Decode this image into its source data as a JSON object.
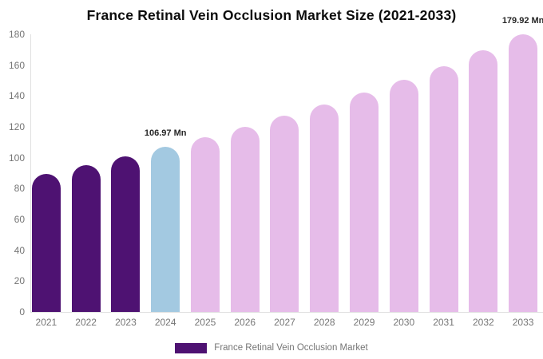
{
  "chart_data": {
    "type": "bar",
    "title": "France Retinal Vein Occlusion Market Size (2021-2033)",
    "categories": [
      "2021",
      "2022",
      "2023",
      "2024",
      "2025",
      "2026",
      "2027",
      "2028",
      "2029",
      "2030",
      "2031",
      "2032",
      "2033"
    ],
    "values": [
      89.5,
      95.2,
      100.9,
      106.97,
      113.2,
      120.0,
      127.0,
      134.5,
      142.0,
      150.5,
      159.5,
      169.5,
      179.92
    ],
    "bar_colors": [
      "#4e1272",
      "#4e1272",
      "#4e1272",
      "#a3c9e1",
      "#e6bce9",
      "#e6bce9",
      "#e6bce9",
      "#e6bce9",
      "#e6bce9",
      "#e6bce9",
      "#e6bce9",
      "#e6bce9",
      "#e6bce9"
    ],
    "xlabel": "",
    "ylabel": "",
    "ylim": [
      0,
      180
    ],
    "yticks": [
      0,
      20,
      40,
      60,
      80,
      100,
      120,
      140,
      160,
      180
    ],
    "grid": false,
    "legend_position": "bottom-center",
    "annotations": [
      {
        "category": "2024",
        "text": "106.97 Mn"
      },
      {
        "category": "2033",
        "text": "179.92 Mn"
      }
    ],
    "legend": {
      "label": "France Retinal Vein Occlusion Market",
      "swatch_color": "#4e1272"
    }
  },
  "colors": {
    "bar_dark_purple": "#4e1272",
    "bar_light_blue": "#a3c9e1",
    "bar_pink": "#e6bce9",
    "axis_line": "#e0e0e0",
    "tick_label": "#757575",
    "annotation_text": "#262626"
  }
}
